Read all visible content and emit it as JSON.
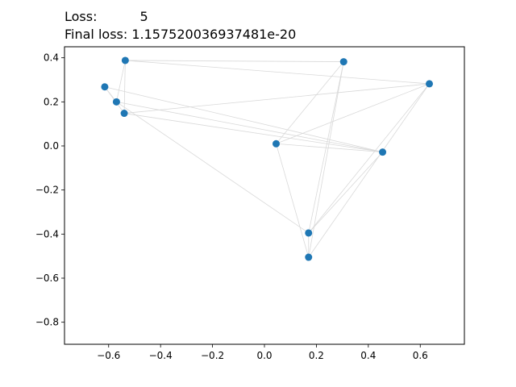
{
  "header": {
    "loss_label": "Loss:",
    "loss_value": "5",
    "final_loss_text": "Final loss: 1.157520036937481e-20"
  },
  "chart_data": {
    "type": "scatter",
    "title": "",
    "xlabel": "",
    "ylabel": "",
    "xlim": [
      -0.77,
      0.77
    ],
    "ylim": [
      -0.9,
      0.45
    ],
    "xticks": [
      -0.6,
      -0.4,
      -0.2,
      0.0,
      0.2,
      0.4,
      0.6
    ],
    "xtick_labels": [
      "−0.6",
      "−0.4",
      "−0.2",
      "0.0",
      "0.2",
      "0.4",
      "0.6"
    ],
    "yticks": [
      0.4,
      0.2,
      0.0,
      -0.2,
      -0.4,
      -0.6,
      -0.8
    ],
    "ytick_labels": [
      "0.4",
      "0.2",
      "0.0",
      "−0.2",
      "−0.4",
      "−0.6",
      "−0.8"
    ],
    "grid": false,
    "point_color": "#1f77b4",
    "edge_color": "#d9d9d9",
    "points": [
      {
        "x": -0.536,
        "y": 0.388
      },
      {
        "x": 0.305,
        "y": 0.382
      },
      {
        "x": 0.635,
        "y": 0.282
      },
      {
        "x": -0.615,
        "y": 0.268
      },
      {
        "x": -0.57,
        "y": 0.2
      },
      {
        "x": -0.54,
        "y": 0.148
      },
      {
        "x": 0.045,
        "y": 0.01
      },
      {
        "x": 0.455,
        "y": -0.028
      },
      {
        "x": 0.17,
        "y": -0.395
      },
      {
        "x": 0.17,
        "y": -0.505
      }
    ],
    "edges": [
      [
        0,
        1
      ],
      [
        0,
        2
      ],
      [
        0,
        4
      ],
      [
        0,
        5
      ],
      [
        1,
        6
      ],
      [
        1,
        8
      ],
      [
        1,
        9
      ],
      [
        2,
        6
      ],
      [
        2,
        5
      ],
      [
        2,
        8
      ],
      [
        2,
        9
      ],
      [
        3,
        4
      ],
      [
        3,
        5
      ],
      [
        3,
        7
      ],
      [
        4,
        7
      ],
      [
        4,
        8
      ],
      [
        5,
        7
      ],
      [
        6,
        9
      ],
      [
        7,
        8
      ],
      [
        7,
        6
      ],
      [
        8,
        9
      ]
    ]
  }
}
